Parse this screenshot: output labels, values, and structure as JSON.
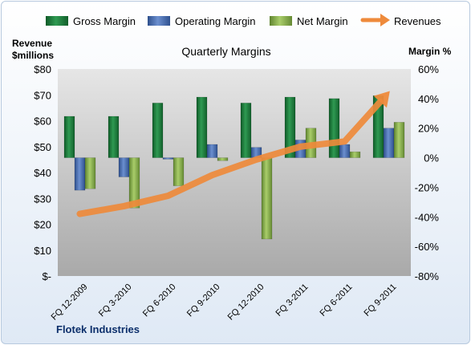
{
  "chart_data": {
    "type": "bar",
    "title": "Quarterly Margins",
    "categories": [
      "FQ 12-2009",
      "FQ 3-2010",
      "FQ 6-2010",
      "FQ 9-2010",
      "FQ 12-2010",
      "FQ 3-2011",
      "FQ 6-2011",
      "FQ 9-2011"
    ],
    "series": [
      {
        "name": "Gross Margin",
        "axis": "right",
        "kind": "bar",
        "color": "#1e7a3c",
        "values": [
          28,
          28,
          37,
          41,
          37,
          41,
          40,
          42
        ]
      },
      {
        "name": "Operating Margin",
        "axis": "right",
        "kind": "bar",
        "color": "#4a6fb2",
        "values": [
          -22,
          -13,
          -1,
          9,
          7,
          12,
          9,
          20
        ]
      },
      {
        "name": "Net Margin",
        "axis": "right",
        "kind": "bar",
        "color": "#8db34f",
        "values": [
          -21,
          -34,
          -19,
          -2,
          -55,
          20,
          4,
          24
        ]
      },
      {
        "name": "Revenues",
        "axis": "left",
        "kind": "arrow-line",
        "color": "#ee8a3b",
        "values": [
          24,
          27,
          31,
          39,
          45,
          50,
          52,
          71
        ]
      }
    ],
    "left_axis": {
      "title_line1": "Revenue",
      "title_line2": "$millions",
      "min": 0,
      "max": 80,
      "ticks": [
        "$-",
        "$10",
        "$20",
        "$30",
        "$40",
        "$50",
        "$60",
        "$70",
        "$80"
      ]
    },
    "right_axis": {
      "title": "Margin %",
      "min": -80,
      "max": 60,
      "ticks": [
        "-80%",
        "-60%",
        "-40%",
        "-20%",
        "0%",
        "20%",
        "40%",
        "60%"
      ]
    },
    "legend_position": "top",
    "grid": false
  },
  "footer": {
    "company": "Flotek Industries"
  },
  "colors": {
    "plot_top": "#e8e8e8",
    "plot_bottom": "#a8a8a8",
    "arrow": "#ee8a3b"
  }
}
